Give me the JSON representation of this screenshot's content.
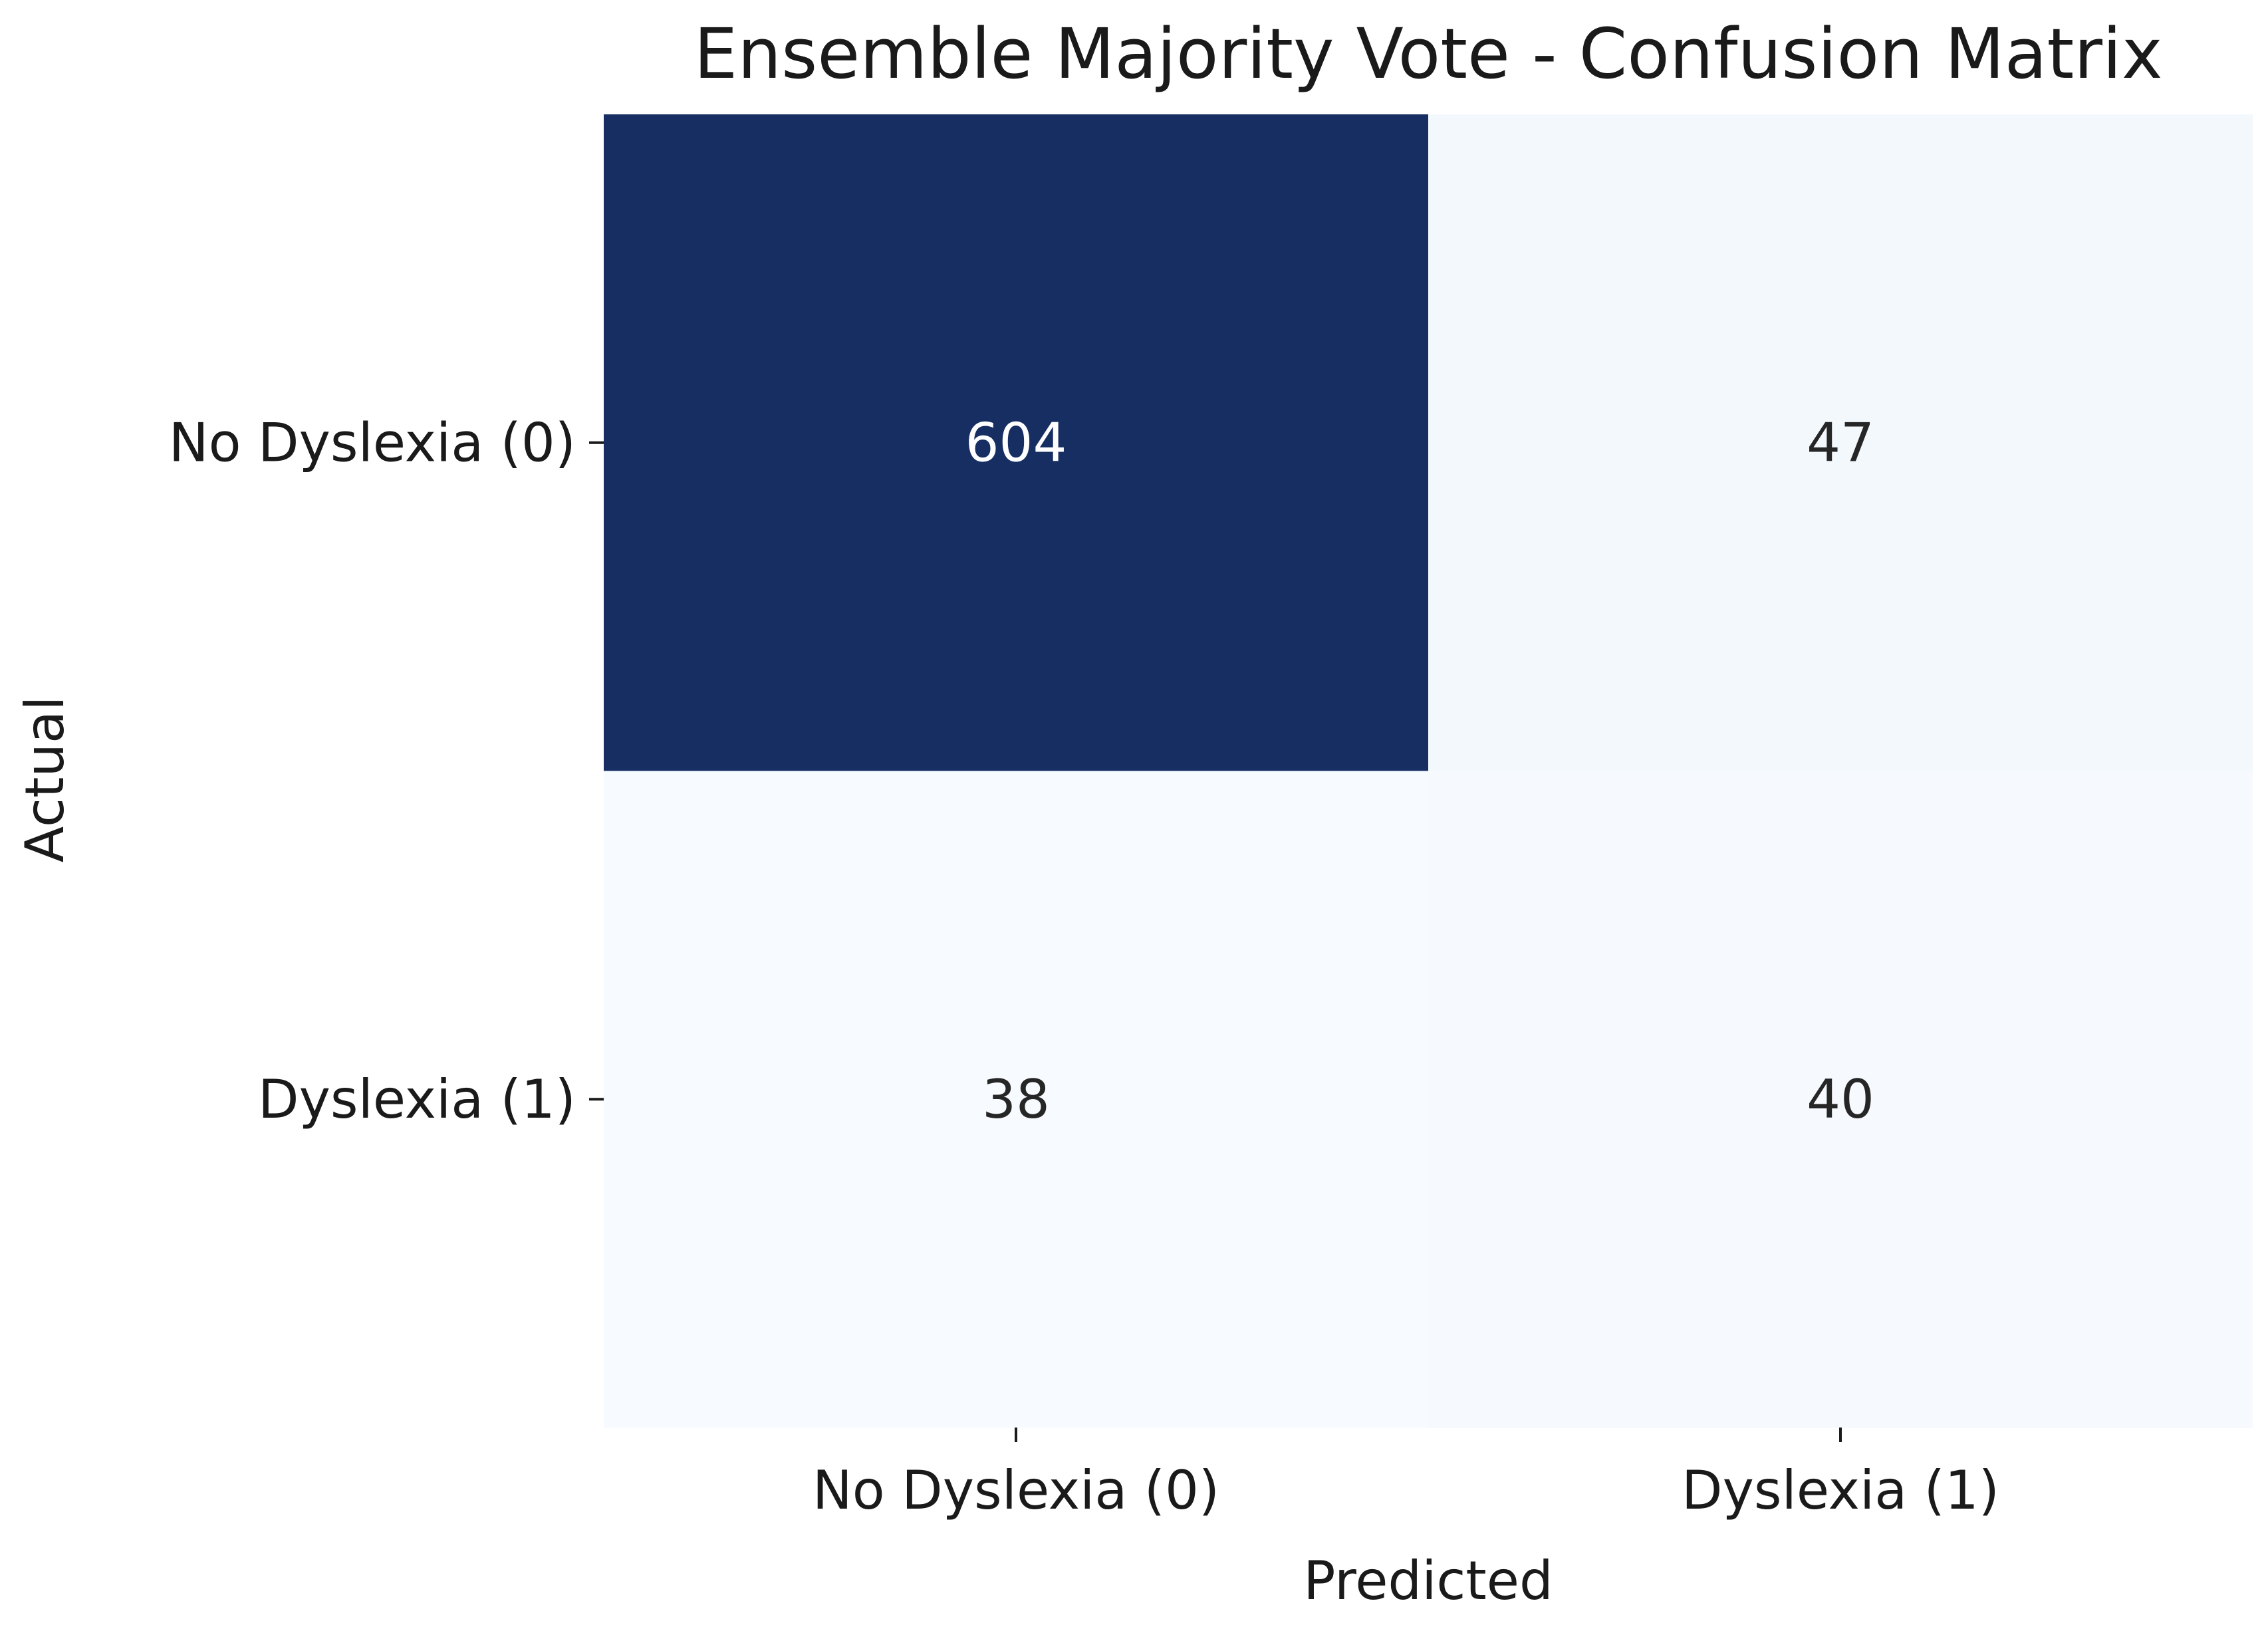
{
  "chart_data": {
    "type": "heatmap",
    "title": "Ensemble Majority Vote - Confusion Matrix",
    "xlabel": "Predicted",
    "ylabel": "Actual",
    "x_categories": [
      "No Dyslexia (0)",
      "Dyslexia (1)"
    ],
    "y_categories": [
      "No Dyslexia (0)",
      "Dyslexia (1)"
    ],
    "values": [
      [
        604,
        47
      ],
      [
        38,
        40
      ]
    ],
    "colormap": "Blues",
    "colorbar": false,
    "annotations": true,
    "grid": false
  },
  "colors": {
    "low": "#f7fbff",
    "high": "#162e62",
    "text_dark": "#262626",
    "text_light": "#ffffff"
  }
}
